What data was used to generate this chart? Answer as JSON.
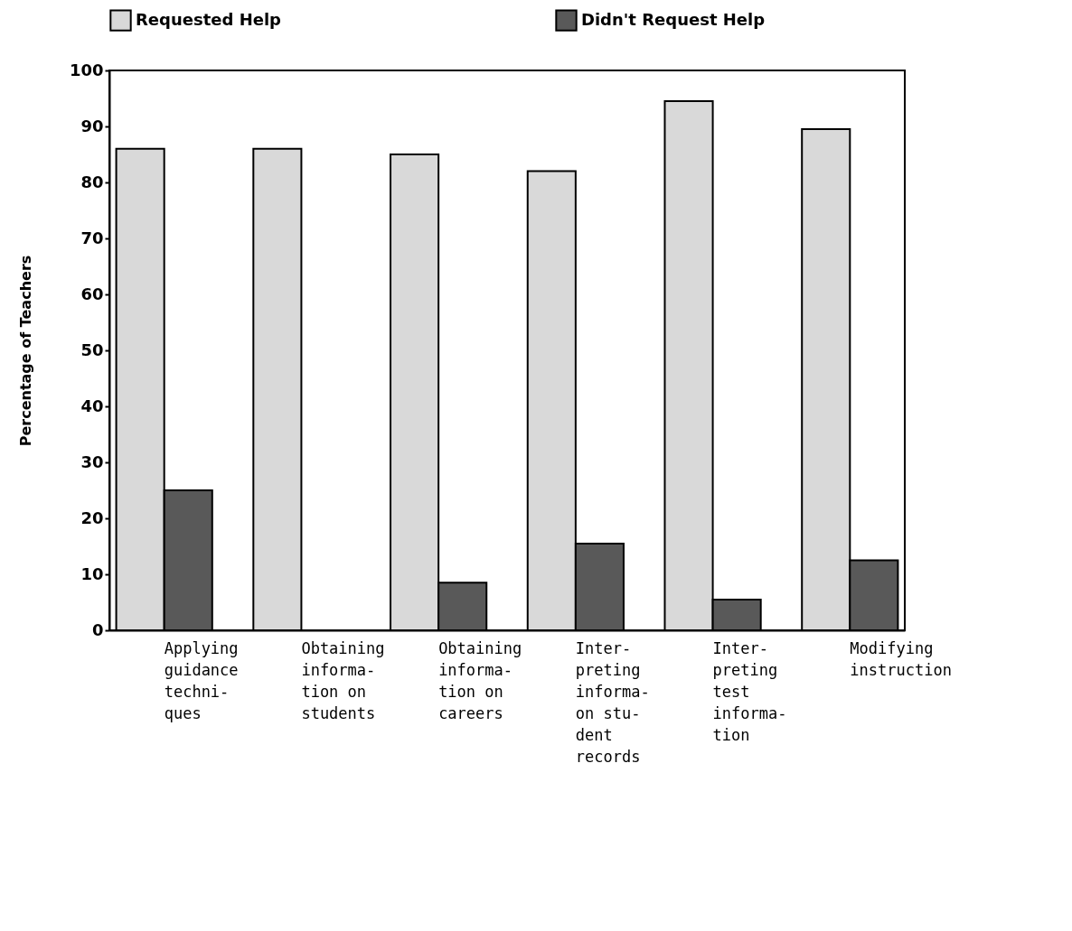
{
  "chart_data": {
    "type": "bar",
    "ylabel": "Percentage of Teachers",
    "categories": [
      "Applying\nguidance\ntechni-\nques",
      "Obtaining\ninforma-\ntion on\nstudents",
      "Obtaining\ninforma-\ntion on\ncareers",
      "Inter-\npreting\ninforma-\non stu-\ndent\nrecords",
      "Inter-\npreting\ntest\ninforma-\ntion",
      "Modifying\ninstruction"
    ],
    "series": [
      {
        "name": "Requested Help",
        "color": "#d9d9d9",
        "values": [
          86,
          86,
          85,
          82,
          94.5,
          89.5
        ]
      },
      {
        "name": "Didn't Request Help",
        "color": "#595959",
        "values": [
          25,
          0,
          8.5,
          15.5,
          5.5,
          12.5
        ]
      }
    ],
    "ylim": [
      0,
      100
    ],
    "yticks": [
      0,
      10,
      20,
      30,
      40,
      50,
      60,
      70,
      80,
      90,
      100
    ],
    "grid": false,
    "legend": "top"
  }
}
